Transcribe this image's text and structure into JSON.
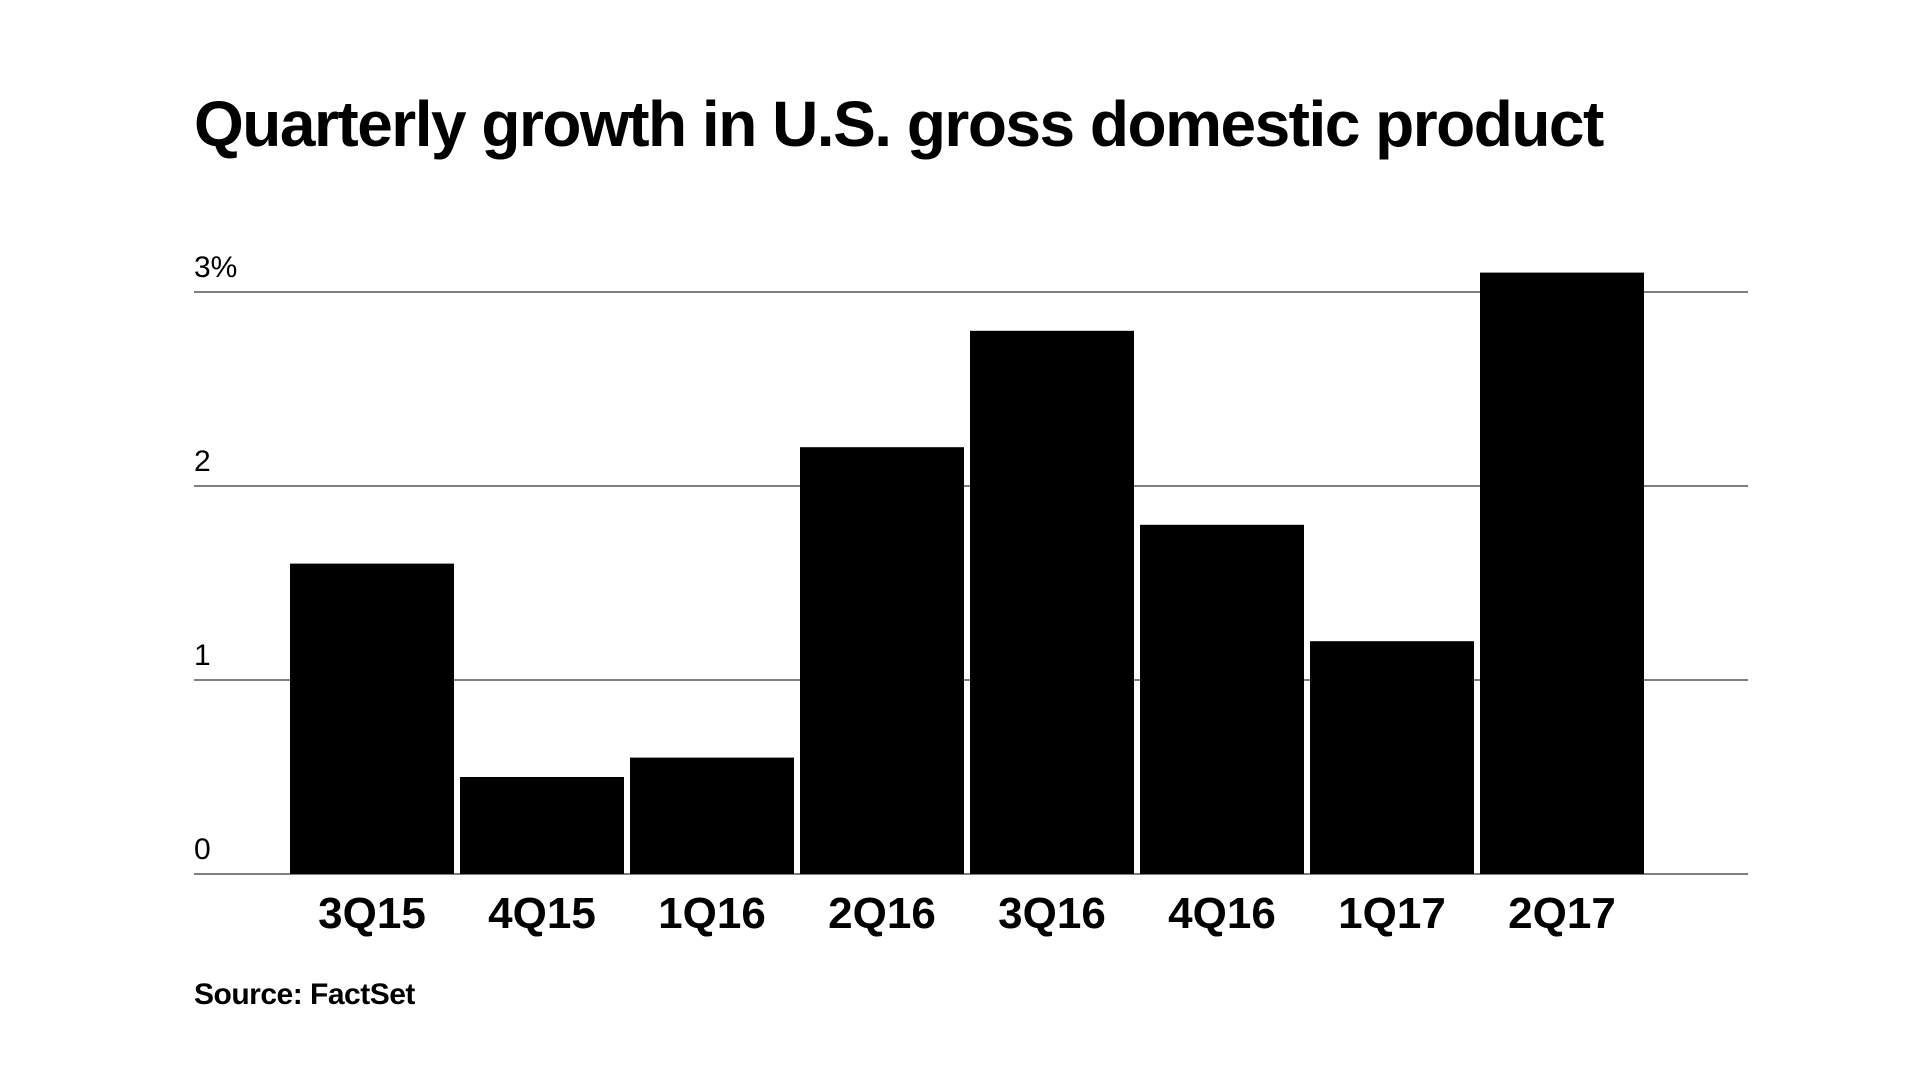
{
  "chart_data": {
    "type": "bar",
    "title": "Quarterly growth in U.S. gross domestic product",
    "categories": [
      "3Q15",
      "4Q15",
      "1Q16",
      "2Q16",
      "3Q16",
      "4Q16",
      "1Q17",
      "2Q17"
    ],
    "values": [
      1.6,
      0.5,
      0.6,
      2.2,
      2.8,
      1.8,
      1.2,
      3.1
    ],
    "ylim": [
      0,
      3
    ],
    "y_ticks": [
      {
        "value": 0,
        "label": "0"
      },
      {
        "value": 1,
        "label": "1"
      },
      {
        "value": 2,
        "label": "2"
      },
      {
        "value": 3,
        "label": "3%"
      }
    ],
    "xlabel": "",
    "ylabel": "",
    "grid": true,
    "legend": "none",
    "bar_color": "#000000",
    "grid_color": "#555555"
  },
  "source": "Source: FactSet"
}
